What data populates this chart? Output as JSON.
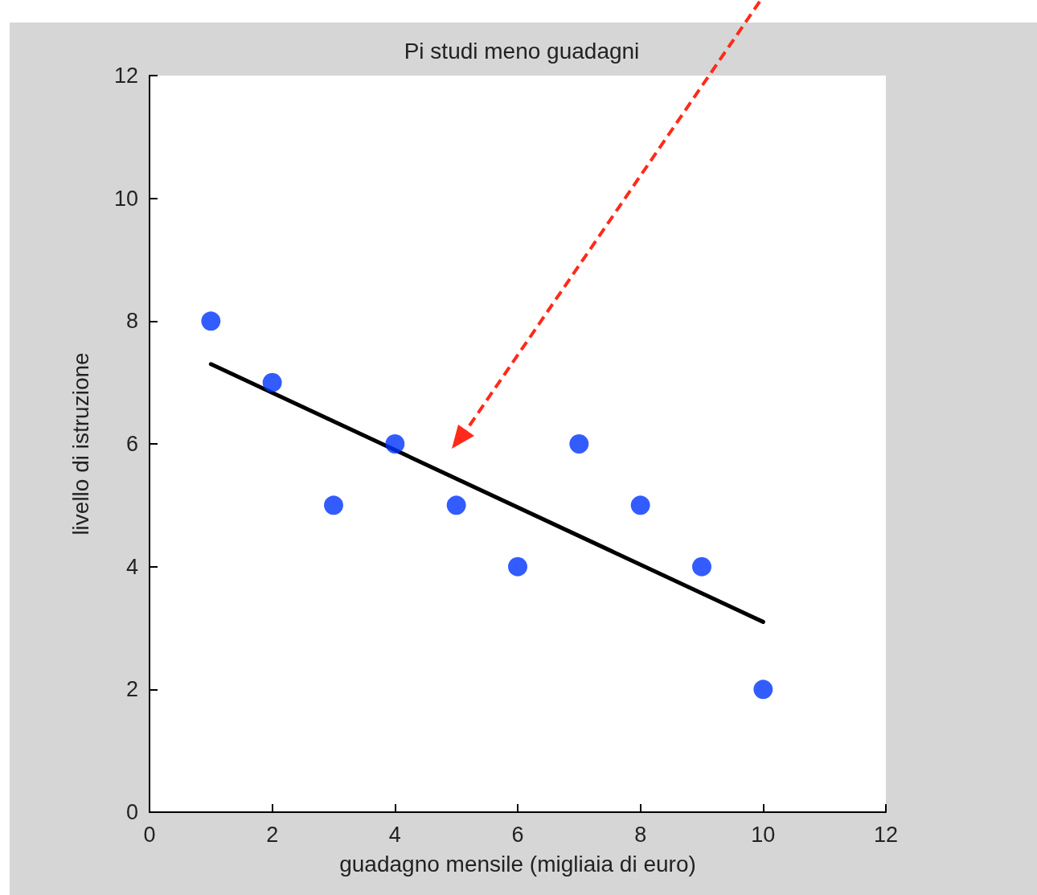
{
  "chart_data": {
    "type": "scatter",
    "title": "Pi studi meno guadagni",
    "xlabel": "guadagno mensile (migliaia di euro)",
    "ylabel": "livello di istruzione",
    "series": [
      {
        "color": "#0033ff",
        "marker": "circle",
        "x": [
          1,
          2,
          3,
          4,
          5,
          6,
          7,
          8,
          9,
          10
        ],
        "values": [
          8,
          7,
          5,
          6,
          5,
          4,
          6,
          5,
          4,
          2
        ]
      },
      {
        "type": "line",
        "color": "#000000",
        "marker": "none",
        "line_style": "solid",
        "x": [
          1,
          10
        ],
        "values": [
          7.3,
          3.1
        ]
      }
    ],
    "xlim": [
      0,
      12
    ],
    "xticks": [
      0,
      2,
      4,
      6,
      8,
      10,
      12
    ],
    "ylim": [
      0,
      12
    ],
    "yticks": [
      0,
      2,
      4,
      6,
      8,
      10,
      12
    ],
    "grid": false
  }
}
